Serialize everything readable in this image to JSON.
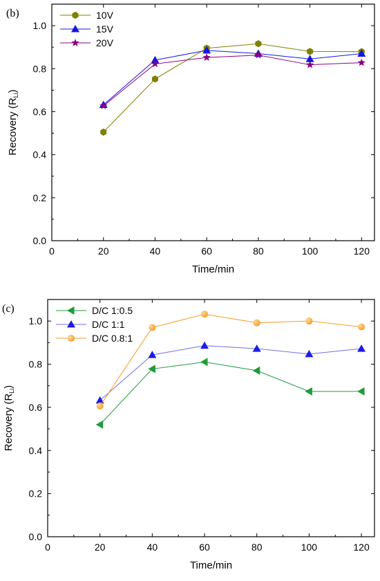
{
  "chart_data": [
    {
      "type": "line",
      "panel_label": "(b)",
      "xlabel": "Time/min",
      "ylabel": {
        "main": "Recovery (R",
        "sub": "Li",
        "close": ")"
      },
      "xlim": [
        0,
        125
      ],
      "ylim": [
        0.0,
        1.1
      ],
      "x_ticks": [
        0,
        20,
        40,
        60,
        80,
        100,
        120
      ],
      "y_ticks": [
        0.0,
        0.2,
        0.4,
        0.6,
        0.8,
        1.0
      ],
      "y_tick_labels": [
        "0.0",
        "0.2",
        "0.4",
        "0.6",
        "0.8",
        "1.0"
      ],
      "legend_position": "top-left",
      "x": [
        20,
        40,
        60,
        80,
        100,
        120
      ],
      "series": [
        {
          "name": "10V",
          "values": [
            0.505,
            0.752,
            0.895,
            0.916,
            0.88,
            0.879
          ],
          "color": "#808000",
          "marker": "hexagon"
        },
        {
          "name": "15V",
          "values": [
            0.632,
            0.84,
            0.885,
            0.87,
            0.845,
            0.87
          ],
          "color": "#1515e0",
          "marker": "triangle"
        },
        {
          "name": "20V",
          "values": [
            0.627,
            0.822,
            0.852,
            0.863,
            0.818,
            0.828
          ],
          "color": "#8b0080",
          "marker": "star"
        }
      ]
    },
    {
      "type": "line",
      "panel_label": "(c)",
      "xlabel": "Time/min",
      "ylabel": {
        "main": "Recovery (R",
        "sub": "Li",
        "close": ")"
      },
      "xlim": [
        0,
        125
      ],
      "ylim": [
        0.0,
        1.1
      ],
      "x_ticks": [
        0,
        20,
        40,
        60,
        80,
        100,
        120
      ],
      "y_ticks": [
        0.0,
        0.2,
        0.4,
        0.6,
        0.8,
        1.0
      ],
      "y_tick_labels": [
        "0.0",
        "0.2",
        "0.4",
        "0.6",
        "0.8",
        "1.0"
      ],
      "legend_position": "top-left",
      "x": [
        20,
        40,
        60,
        80,
        100,
        120
      ],
      "series": [
        {
          "name": "D/C 1:0.5",
          "values": [
            0.52,
            0.778,
            0.81,
            0.77,
            0.674,
            0.674
          ],
          "color": "#1e9b3a",
          "marker": "triangle-left"
        },
        {
          "name": "D/C 1:1",
          "values": [
            0.632,
            0.843,
            0.886,
            0.872,
            0.847,
            0.872
          ],
          "color": "#1c1ce6",
          "marker": "triangle",
          "line_color": "#6f6fe6"
        },
        {
          "name": "D/C 0.8:1",
          "values": [
            0.606,
            0.97,
            1.032,
            0.992,
            1.0,
            0.973
          ],
          "color": "#f59a23",
          "marker": "circle"
        }
      ]
    }
  ]
}
